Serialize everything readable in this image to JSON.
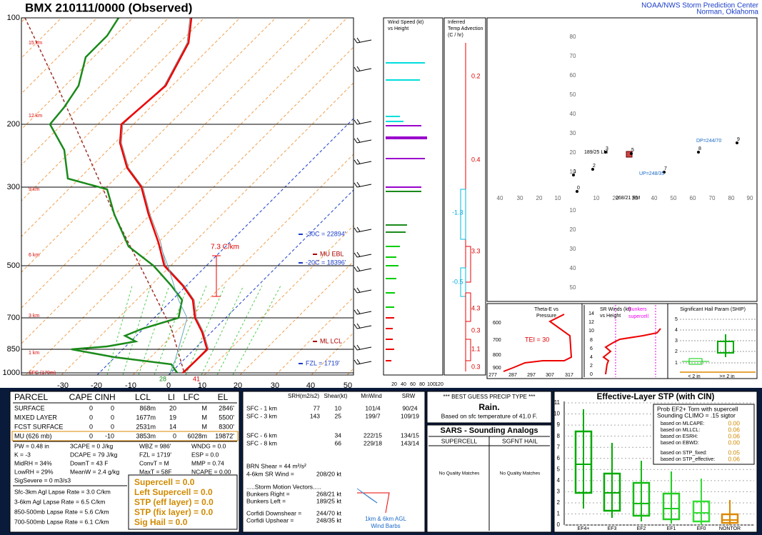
{
  "header": {
    "title": "BMX  210111/0000  (Observed)",
    "credit": [
      "NOAA/NWS Storm Prediction Center",
      "Norman, Oklahoma"
    ]
  },
  "skewt": {
    "pressure_labels": [
      "100",
      "200",
      "300",
      "500",
      "700",
      "850",
      "1000"
    ],
    "temp_labels": [
      "-30",
      "-20",
      "-10",
      "0",
      "10",
      "20",
      "30",
      "40",
      "50"
    ],
    "height_labels": [
      "15 km",
      "12 km",
      "9 km",
      "6 km",
      "3 km",
      "1 km",
      "SFC (170m)"
    ],
    "annotations": {
      "lapse": "7.3 C/km",
      "m30": "-30C = 22894'",
      "mu_ebl": "MU EBL",
      "m20": "-20C = 18396'",
      "ml_lcl": "ML LCL",
      "fzl": "FZL = 1719'",
      "td_sfc": "28",
      "t_sfc": "41"
    }
  },
  "wind_speed": {
    "title": [
      "Wind Speed (kt)",
      "vs Height"
    ],
    "axis": [
      "20",
      "40",
      "60",
      "80",
      "100",
      "120"
    ]
  },
  "temp_advection": {
    "title": [
      "Inferred",
      "Temp Advection",
      "(C / hr)"
    ],
    "values": [
      "0.2",
      "0.4",
      "-1.3",
      "3.3",
      "-0.5",
      "4.3",
      "0.3",
      "1.1",
      "0.3"
    ]
  },
  "hodograph": {
    "x_labels": [
      "40",
      "30",
      "20",
      "10",
      "10",
      "20",
      "30",
      "40",
      "50",
      "60",
      "70",
      "80",
      "90"
    ],
    "y_labels_up": [
      "80",
      "70",
      "60",
      "50",
      "40",
      "30",
      "20",
      "10"
    ],
    "y_labels_down": [
      "10",
      "20",
      "30",
      "40",
      "50"
    ],
    "point_labels": [
      "0",
      "1",
      "2",
      "3",
      "5",
      "7",
      "8",
      "9"
    ],
    "annotations": {
      "lm": "189/25 LM",
      "rm": "268/21 RM",
      "dp": "DP=244/70",
      "up": "UP=248/35"
    }
  },
  "theta_e": {
    "title": [
      "Theta-E vs",
      "Pressure"
    ],
    "p_labels": [
      "600",
      "700",
      "800",
      "900"
    ],
    "x_labels": [
      "277",
      "287",
      "297",
      "307",
      "317"
    ],
    "tei": "TEI = 30"
  },
  "sr_winds": {
    "title": [
      "SR Winds (kt)",
      "vs Height"
    ],
    "y_labels": [
      "14",
      "12",
      "10",
      "8",
      "6",
      "4",
      "2",
      "0"
    ],
    "annotation": [
      "Bunkers",
      "supercell"
    ]
  },
  "ship": {
    "title": "Significant Hail Param (SHIP)",
    "y_labels": [
      "5",
      "4",
      "3",
      "2",
      "1"
    ],
    "x_labels": [
      "< 2 in",
      ">= 2 in"
    ]
  },
  "parcel": {
    "headers": [
      "PARCEL",
      "CAPE",
      "CINH",
      "LCL",
      "LI",
      "LFC",
      "EL"
    ],
    "rows": [
      [
        "SURFACE",
        "0",
        "0",
        "868m",
        "20",
        "M",
        "2846'"
      ],
      [
        "MIXED LAYER",
        "0",
        "0",
        "1677m",
        "19",
        "M",
        "5500'"
      ],
      [
        "FCST SURFACE",
        "0",
        "0",
        "2531m",
        "14",
        "M",
        "8300'"
      ],
      [
        "MU  (626 mb)",
        "0",
        "-10",
        "3853m",
        "0",
        "6028m",
        "19872'"
      ]
    ],
    "indices": [
      [
        "PW = 0.48 in",
        "3CAPE = 0 J/kg",
        "WBZ = 986'",
        "WNDG = 0.0"
      ],
      [
        "K = -3",
        "DCAPE = 79 J/kg",
        "FZL = 1719'",
        "ESP = 0.0"
      ],
      [
        "MidRH = 34%",
        "DownT = 43 F",
        "ConvT = M",
        "MMP = 0.74"
      ],
      [
        "LowRH = 29%",
        "MeanW = 2.4 g/kg",
        "MaxT = 58F",
        "NCAPE = 0.00"
      ]
    ],
    "sigsevere": "SigSevere = 0 m3/s3",
    "lapse_rates": [
      "Sfc-3km Agl Lapse Rate = 3.0 C/km",
      "3-6km Agl Lapse Rate = 6.5 C/km",
      "850-500mb Lapse Rate = 5.6 C/km",
      "700-500mb Lapse Rate = 6.1 C/km"
    ],
    "composites": [
      "Supercell = 0.0",
      "Left Supercell = 0.0",
      "STP (eff layer) = 0.0",
      "STP (fix layer) = 0.0",
      "Sig Hail = 0.0"
    ]
  },
  "kinematics": {
    "headers": [
      "SRH(m2/s2)",
      "Shear(kt)",
      "MnWind",
      "SRW"
    ],
    "rows": [
      {
        "layer": "SFC - 1 km",
        "srh": "77",
        "shear": "10",
        "mnwind": "101/4",
        "srw": "90/24"
      },
      {
        "layer": "SFC - 3 km",
        "srh": "143",
        "shear": "25",
        "mnwind": "199/7",
        "srw": "109/19"
      },
      {
        "layer": "SFC - 6 km",
        "shear": "34",
        "mnwind": "222/15",
        "srw": "134/15"
      },
      {
        "layer": "SFC - 8 km",
        "shear": "66",
        "mnwind": "229/18",
        "srw": "143/14"
      }
    ],
    "brn": "BRN Shear = 44 m²/s²",
    "pairs1": [
      {
        "label": "4-6km SR Wind =",
        "value": "208/20 kt"
      }
    ],
    "motion_title": ".....Storm Motion Vectors.....",
    "pairs2": [
      {
        "label": "Bunkers Right =",
        "value": "268/21 kt"
      },
      {
        "label": "Bunkers Left =",
        "value": "189/25 kt"
      }
    ],
    "pairs3": [
      {
        "label": "Corfidi Downshear =",
        "value": "244/70 kt"
      },
      {
        "label": "Corfidi Upshear =",
        "value": "248/35 kt"
      }
    ],
    "barb_caption": [
      "1km & 6km AGL",
      "Wind Barbs"
    ]
  },
  "precip": {
    "header": "*** BEST GUESS PRECIP TYPE ***",
    "type": "Rain.",
    "basis": "Based on sfc temperature of 41.0 F."
  },
  "sars": {
    "title": "SARS - Sounding Analogs",
    "columns": [
      "SUPERCELL",
      "SGFNT HAIL"
    ],
    "results": [
      "No Quality Matches",
      "No Quality Matches"
    ]
  },
  "stp": {
    "title": "Effective-Layer STP (with CIN)",
    "y_labels": [
      "11",
      "10",
      "9",
      "8",
      "7",
      "6",
      "5",
      "4",
      "3",
      "2",
      "1",
      "0"
    ],
    "x_labels": [
      "EF4+",
      "EF3",
      "EF2",
      "EF1",
      "EF0",
      "NONTOR"
    ],
    "legend_title": [
      "Prob EF2+ Torn with supercell",
      "Sounding CLIMO = .15 sigtor"
    ],
    "legend_rows": [
      {
        "label": "based on MLCAPE:",
        "value": "0.00"
      },
      {
        "label": "based on MLLCL:",
        "value": "0.06"
      },
      {
        "label": "based on ESRH:",
        "value": "0.06"
      },
      {
        "label": "based on EBWD:",
        "value": "0.00"
      },
      {
        "label": "based on STP_fixed:",
        "value": "0.05"
      },
      {
        "label": "based on STP_effective:",
        "value": "0.06"
      }
    ]
  }
}
